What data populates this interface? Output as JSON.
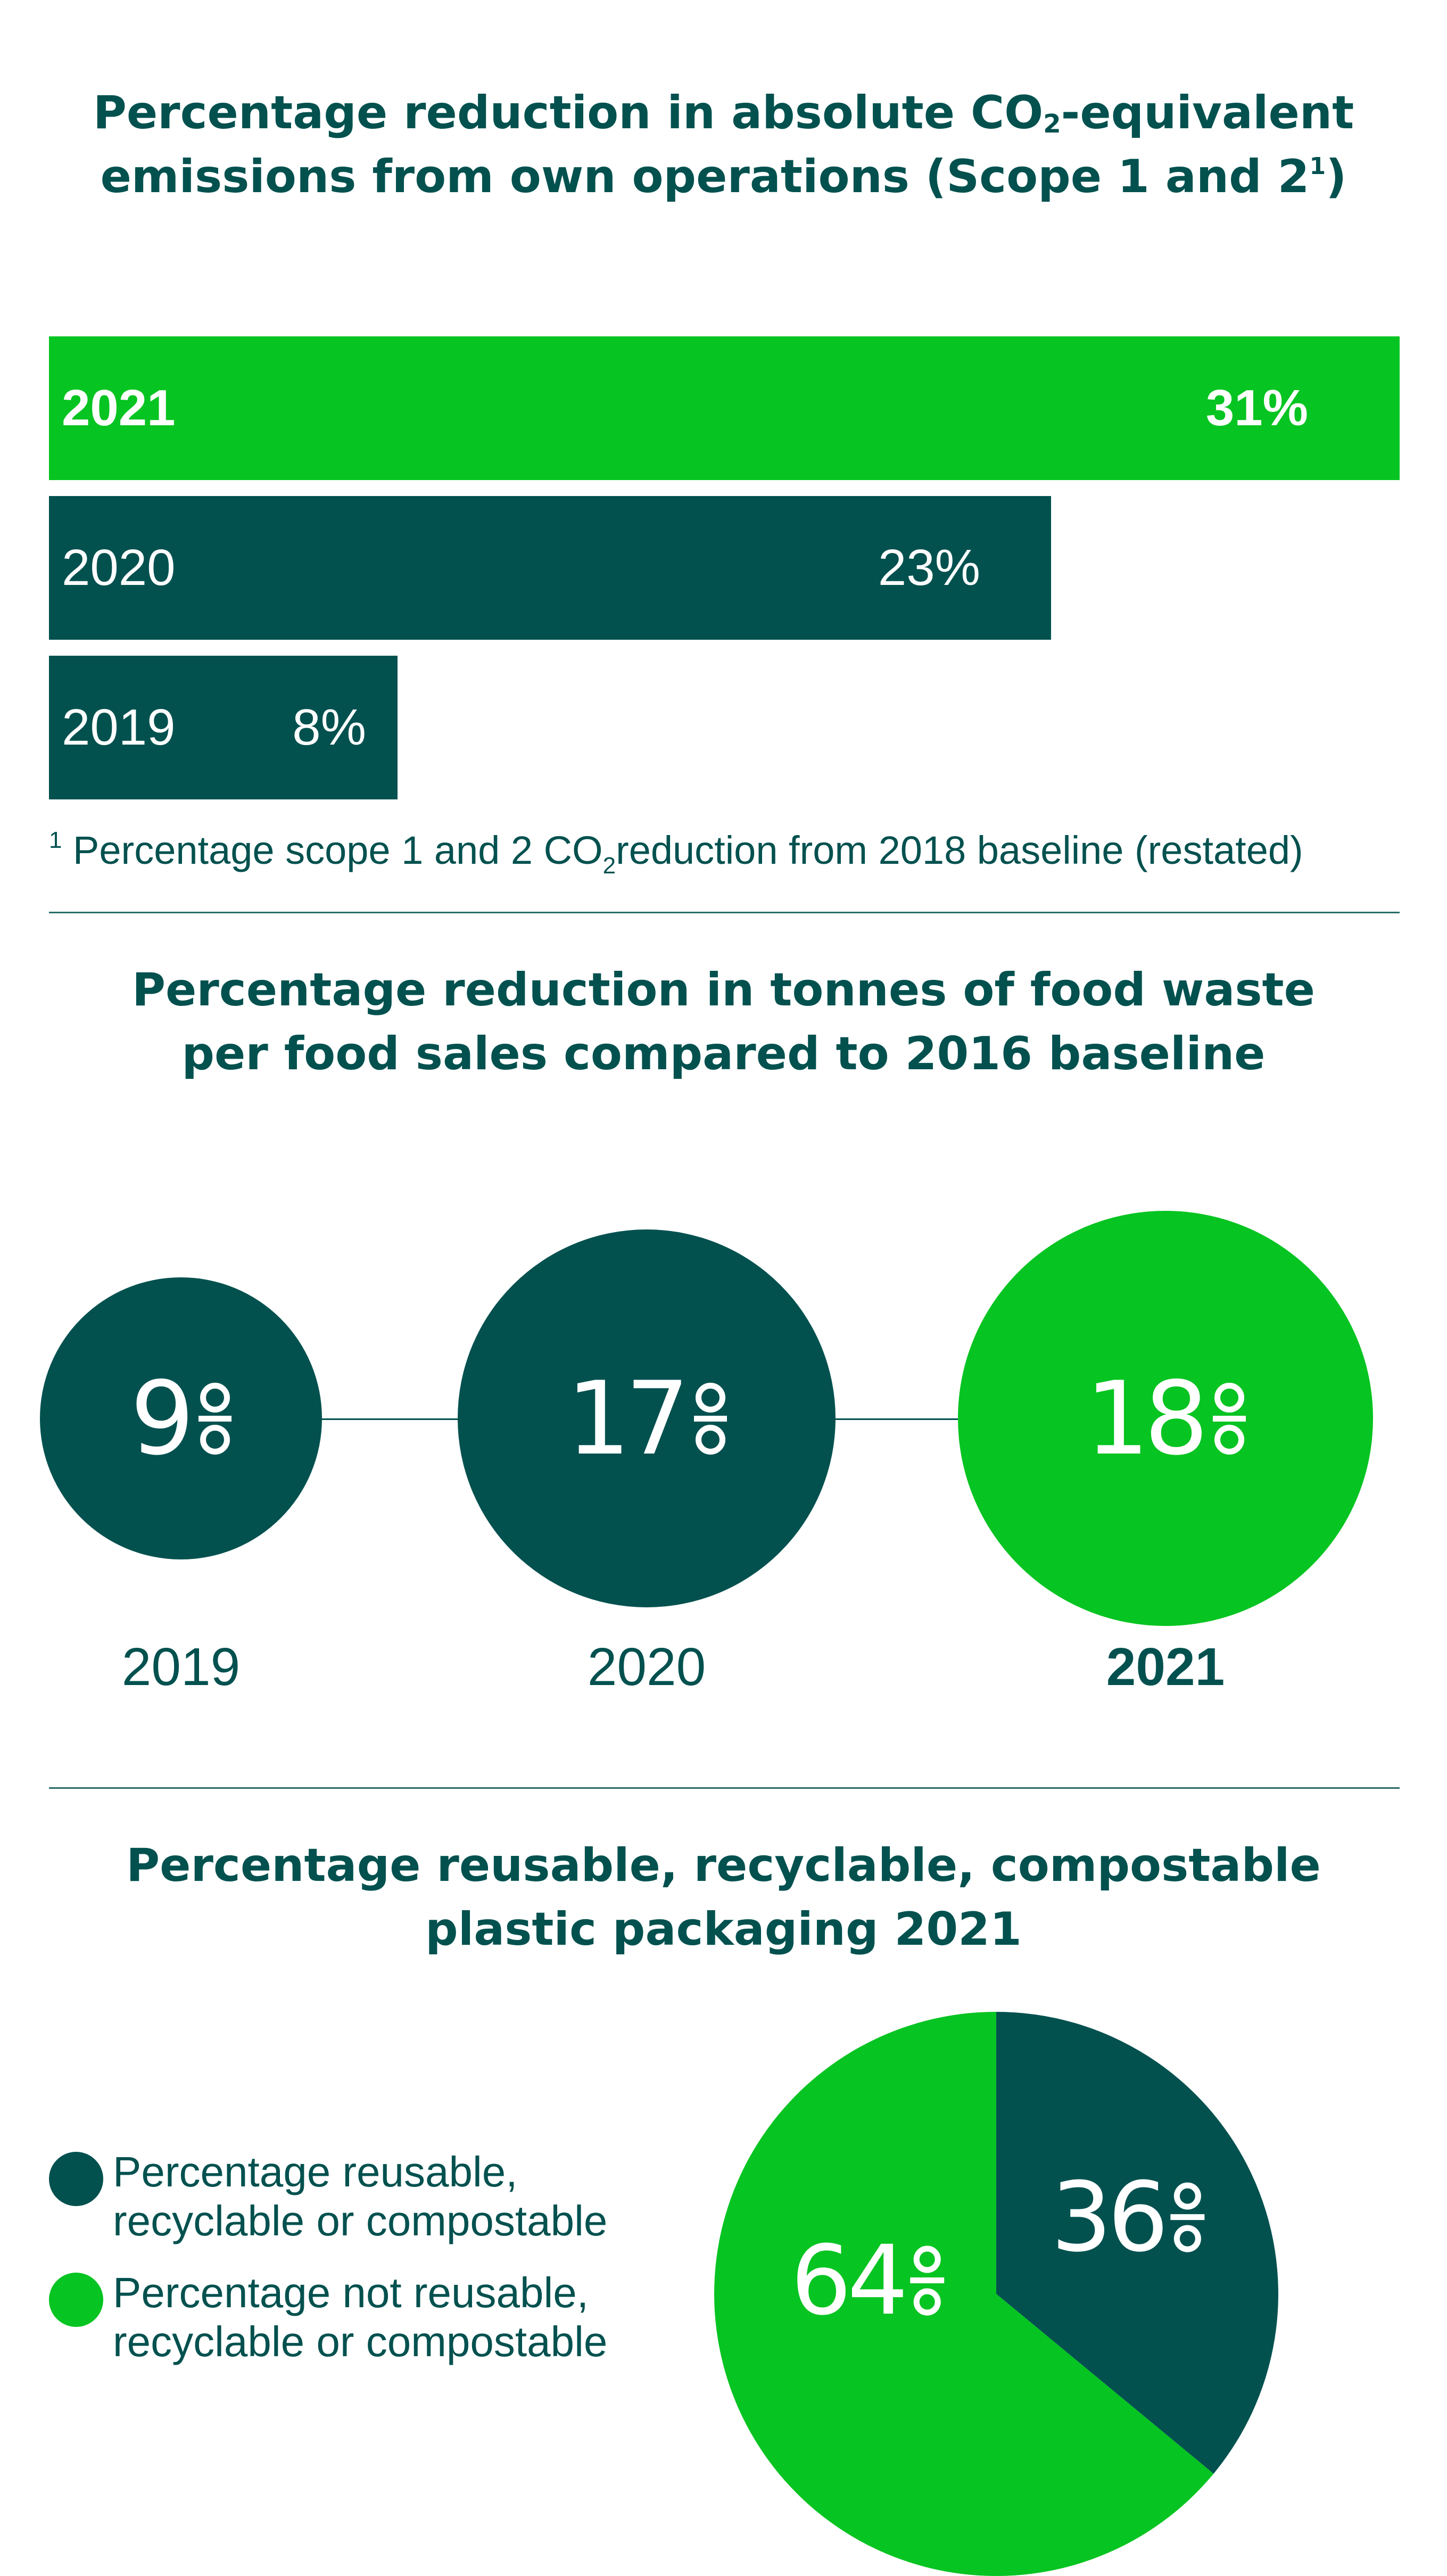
{
  "chart_data": [
    {
      "type": "bar",
      "orientation": "horizontal",
      "title_parts": {
        "line1_pre": "Percentage reduction in absolute CO",
        "line1_sub": "2",
        "line1_post": "-equivalent",
        "line2_pre": "emissions from own operations (Scope 1 and 2",
        "line2_sup": "1",
        "line2_post": ")"
      },
      "categories": [
        "2021",
        "2020",
        "2019"
      ],
      "values": [
        31,
        23,
        8
      ],
      "value_labels": [
        "31%",
        "23%",
        "8%"
      ],
      "highlight": "2021",
      "colors": {
        "highlight": "#06c421",
        "normal": "#02514f"
      },
      "footnote": {
        "mark": "1",
        "pre": "Percentage scope 1 and 2 CO",
        "sub": "2",
        "post": "reduction from 2018 baseline (restated)"
      }
    },
    {
      "type": "bubble",
      "title_lines": [
        "Percentage reduction in tonnes of food waste",
        "per food sales compared to 2016 baseline"
      ],
      "categories": [
        "2019",
        "2020",
        "2021"
      ],
      "values": [
        9,
        17,
        18
      ],
      "value_labels": [
        "9",
        "17",
        "18"
      ],
      "highlight": "2021",
      "colors": {
        "highlight": "#06c421",
        "normal": "#02514f"
      }
    },
    {
      "type": "pie",
      "title_lines": [
        "Percentage reusable, recyclable, compostable",
        "plastic packaging  2021"
      ],
      "slices": [
        {
          "label": "Percentage reusable, recyclable or compostable",
          "value": 36,
          "value_label": "36",
          "color": "#02514f"
        },
        {
          "label": "Percentage not reusable, recyclable or compostable",
          "value": 64,
          "value_label": "64",
          "color": "#06c421"
        }
      ],
      "legend": [
        {
          "line1": "Percentage reusable,",
          "line2": "recyclable or compostable",
          "color": "#02514f"
        },
        {
          "line1": "Percentage not reusable,",
          "line2": "recyclable or compostable",
          "color": "#06c421"
        }
      ]
    }
  ]
}
